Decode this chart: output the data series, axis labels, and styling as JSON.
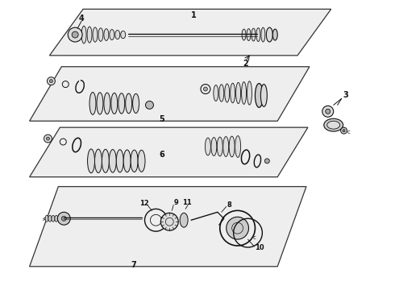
{
  "bg_color": "#ffffff",
  "lc": "#111111",
  "fig_width": 4.9,
  "fig_height": 3.6,
  "dpi": 100
}
